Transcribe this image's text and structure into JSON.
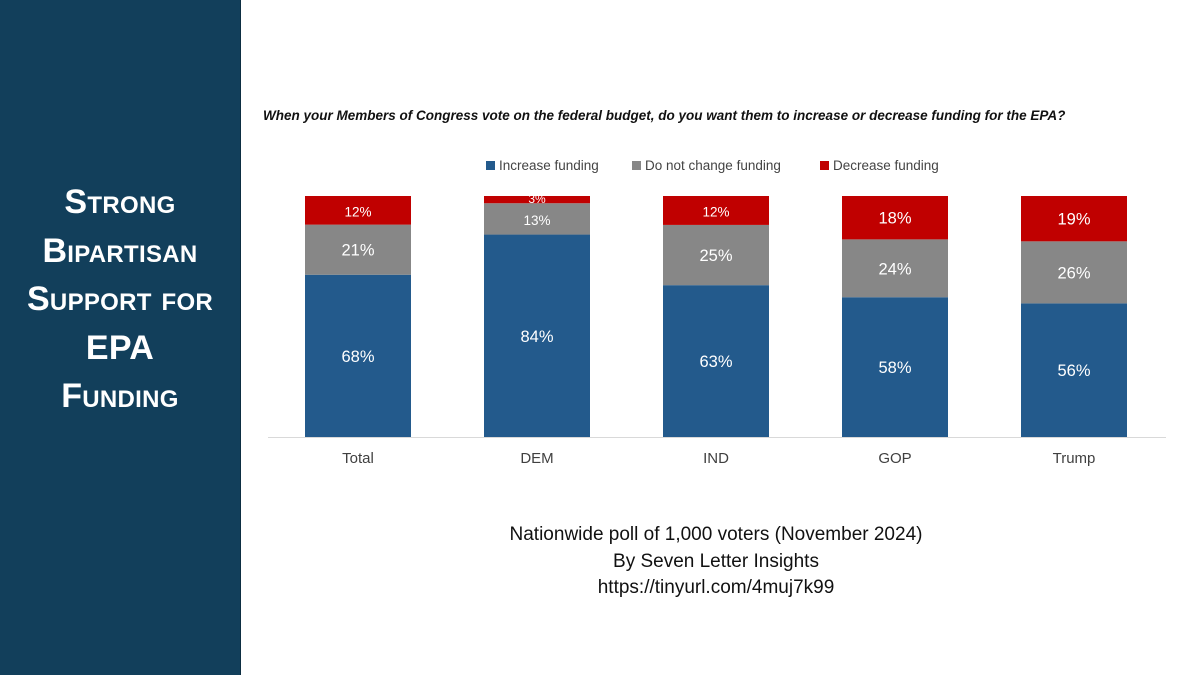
{
  "side_title": [
    "Strong",
    "Bipartisan",
    "Support for",
    "EPA",
    "Funding"
  ],
  "question": "When your Members of Congress vote on the federal budget, do you want them to increase or decrease funding for the EPA?",
  "source_lines": [
    "Nationwide poll of 1,000 voters (November 2024)",
    "By Seven Letter Insights",
    "https://tinyurl.com/4muj7k99"
  ],
  "chart_data": {
    "type": "bar",
    "stacked": true,
    "title": "When your Members of Congress vote on the federal budget, do you want them to increase or decrease funding for the EPA?",
    "categories": [
      "Total",
      "DEM",
      "IND",
      "GOP",
      "Trump"
    ],
    "series": [
      {
        "name": "Increase funding",
        "color": "#235a8c",
        "values": [
          68,
          84,
          63,
          58,
          56
        ],
        "labels": [
          "68%",
          "84%",
          "63%",
          "58%",
          "56%"
        ]
      },
      {
        "name": "Do not change funding",
        "color": "#878787",
        "values": [
          21,
          13,
          25,
          24,
          26
        ],
        "labels": [
          "21%",
          "13%",
          "25%",
          "24%",
          "26%"
        ]
      },
      {
        "name": "Decrease funding",
        "color": "#c00000",
        "values": [
          12,
          3,
          12,
          18,
          19
        ],
        "labels": [
          "12%",
          "3%",
          "12%",
          "18%",
          "19%"
        ]
      }
    ],
    "ylim": [
      0,
      100
    ],
    "legend_position": "top",
    "grid": false
  }
}
